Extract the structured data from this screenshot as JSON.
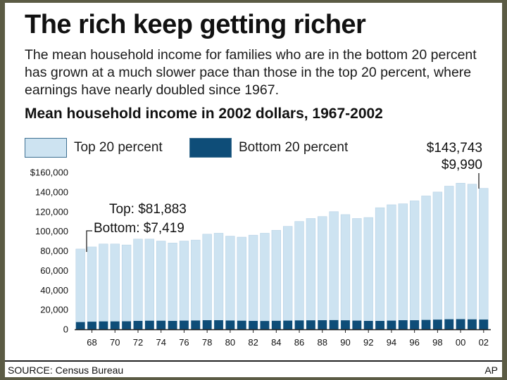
{
  "header": {
    "title": "The rich keep getting richer",
    "description": "The mean household income for families who are in the bottom 20 percent has grown at a much slower pace than those in the top 20 percent, where earnings have nearly doubled since 1967.",
    "subtitle": "Mean household income in 2002 dollars, 1967-2002"
  },
  "legend": {
    "top_label": "Top 20 percent",
    "bottom_label": "Bottom 20 percent"
  },
  "colors": {
    "top": "#cde3f1",
    "bottom": "#0e4d78",
    "axis": "#222222"
  },
  "annotations": {
    "start_top": "Top: $81,883",
    "start_bottom": "Bottom: $7,419",
    "end_top": "$143,743",
    "end_bottom": "$9,990"
  },
  "footer": {
    "source": "SOURCE: Census Bureau",
    "credit": "AP"
  },
  "chart_data": {
    "type": "bar",
    "stacked": "overlaid",
    "categories": [
      "1967",
      "1968",
      "1969",
      "1970",
      "1971",
      "1972",
      "1973",
      "1974",
      "1975",
      "1976",
      "1977",
      "1978",
      "1979",
      "1980",
      "1981",
      "1982",
      "1983",
      "1984",
      "1985",
      "1986",
      "1987",
      "1988",
      "1989",
      "1990",
      "1991",
      "1992",
      "1993",
      "1994",
      "1995",
      "1996",
      "1997",
      "1998",
      "1999",
      "2000",
      "2001",
      "2002"
    ],
    "x_tick_labels": [
      "68",
      "70",
      "72",
      "74",
      "76",
      "78",
      "80",
      "82",
      "84",
      "86",
      "88",
      "90",
      "92",
      "94",
      "96",
      "98",
      "00",
      "02"
    ],
    "y_tick_labels": [
      "0",
      "20,000",
      "40,000",
      "60,000",
      "80,000",
      "100,000",
      "120,000",
      "140,000",
      "$160,000"
    ],
    "ylim": [
      0,
      160000
    ],
    "grid": false,
    "legend_position": "top",
    "series": [
      {
        "name": "Top 20 percent",
        "values": [
          81883,
          84000,
          87000,
          87000,
          86000,
          92000,
          92000,
          90000,
          88000,
          90000,
          91000,
          97000,
          98000,
          95000,
          94000,
          96000,
          98000,
          101000,
          105000,
          110000,
          113000,
          115000,
          120000,
          117000,
          113000,
          114000,
          124000,
          127000,
          128000,
          131000,
          136000,
          140000,
          146000,
          149000,
          148000,
          143743
        ]
      },
      {
        "name": "Bottom 20 percent",
        "values": [
          7419,
          7800,
          8100,
          8100,
          8200,
          8600,
          8800,
          8800,
          8600,
          8900,
          9000,
          9300,
          9300,
          9000,
          8800,
          8600,
          8500,
          8700,
          8900,
          9100,
          9200,
          9300,
          9400,
          9200,
          8900,
          8600,
          8600,
          8900,
          9300,
          9300,
          9600,
          9900,
          10300,
          10400,
          10200,
          9990
        ]
      }
    ]
  }
}
